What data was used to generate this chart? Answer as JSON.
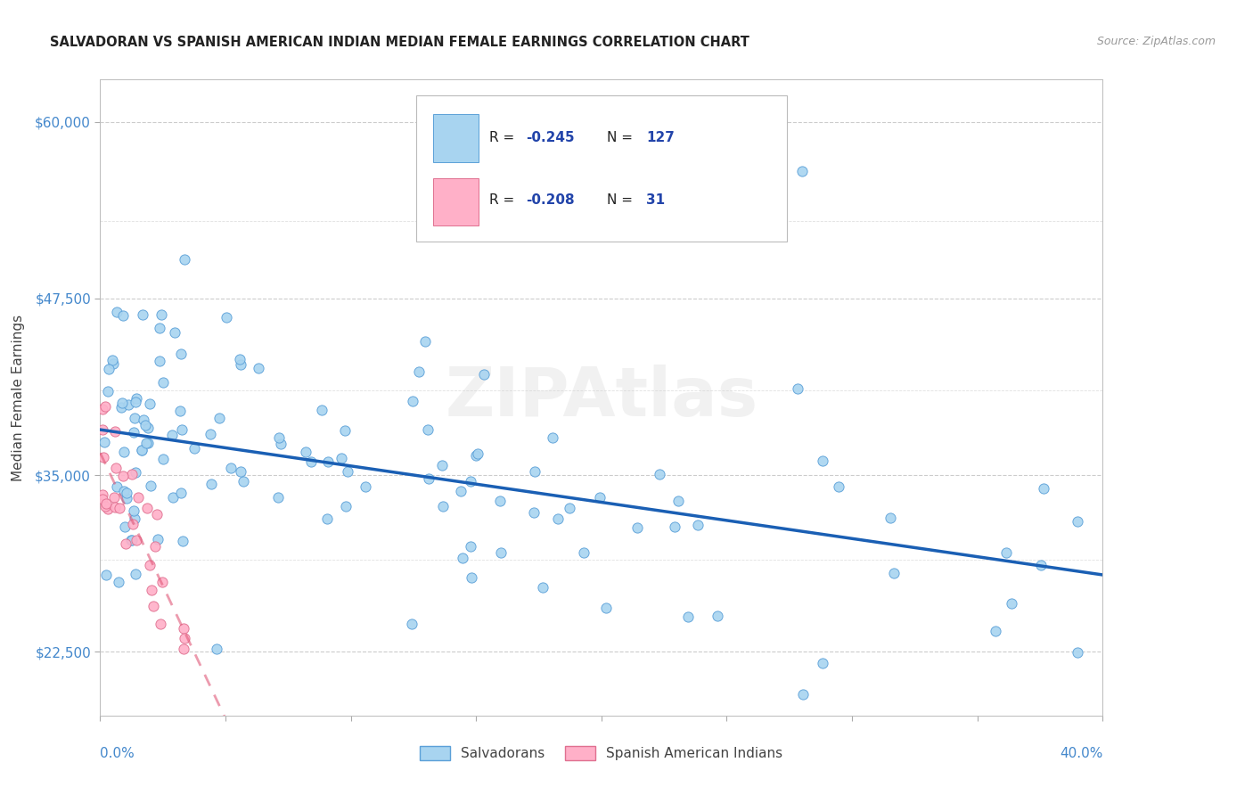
{
  "title": "SALVADORAN VS SPANISH AMERICAN INDIAN MEDIAN FEMALE EARNINGS CORRELATION CHART",
  "source": "Source: ZipAtlas.com",
  "ylabel": "Median Female Earnings",
  "blue_R": "-0.245",
  "blue_N": "127",
  "pink_R": "-0.208",
  "pink_N": "31",
  "blue_color": "#A8D4F0",
  "pink_color": "#FFB0C8",
  "blue_line_color": "#1A5FB4",
  "pink_line_color": "#E05878",
  "blue_edge_color": "#5BA0D8",
  "pink_edge_color": "#E07090",
  "legend_label_blue": "Salvadorans",
  "legend_label_pink": "Spanish American Indians",
  "watermark": "ZIPAtlas",
  "background_color": "#FFFFFF",
  "grid_color": "#CCCCCC",
  "axis_label_color": "#4488CC",
  "text_color": "#2244AA",
  "xlim": [
    0.0,
    0.4
  ],
  "ylim": [
    18000,
    63000
  ],
  "ytick_vals": [
    22500,
    35000,
    47500,
    60000
  ],
  "ytick_labels": [
    "$22,500",
    "$35,000",
    "$47,500",
    "$60,000"
  ]
}
